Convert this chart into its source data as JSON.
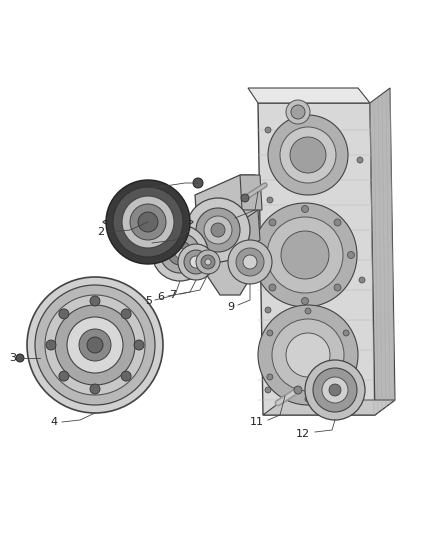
{
  "bg_color": "#ffffff",
  "label_color": "#222222",
  "line_color": "#444444",
  "part_color": "#999999",
  "part_dark": "#555555",
  "part_mid": "#888888",
  "part_light": "#cccccc",
  "part_lighter": "#e0e0e0",
  "label_font_size": 8,
  "figsize": [
    4.38,
    5.33
  ],
  "dpi": 100,
  "lw_leader": 0.6,
  "lw_part": 0.8
}
